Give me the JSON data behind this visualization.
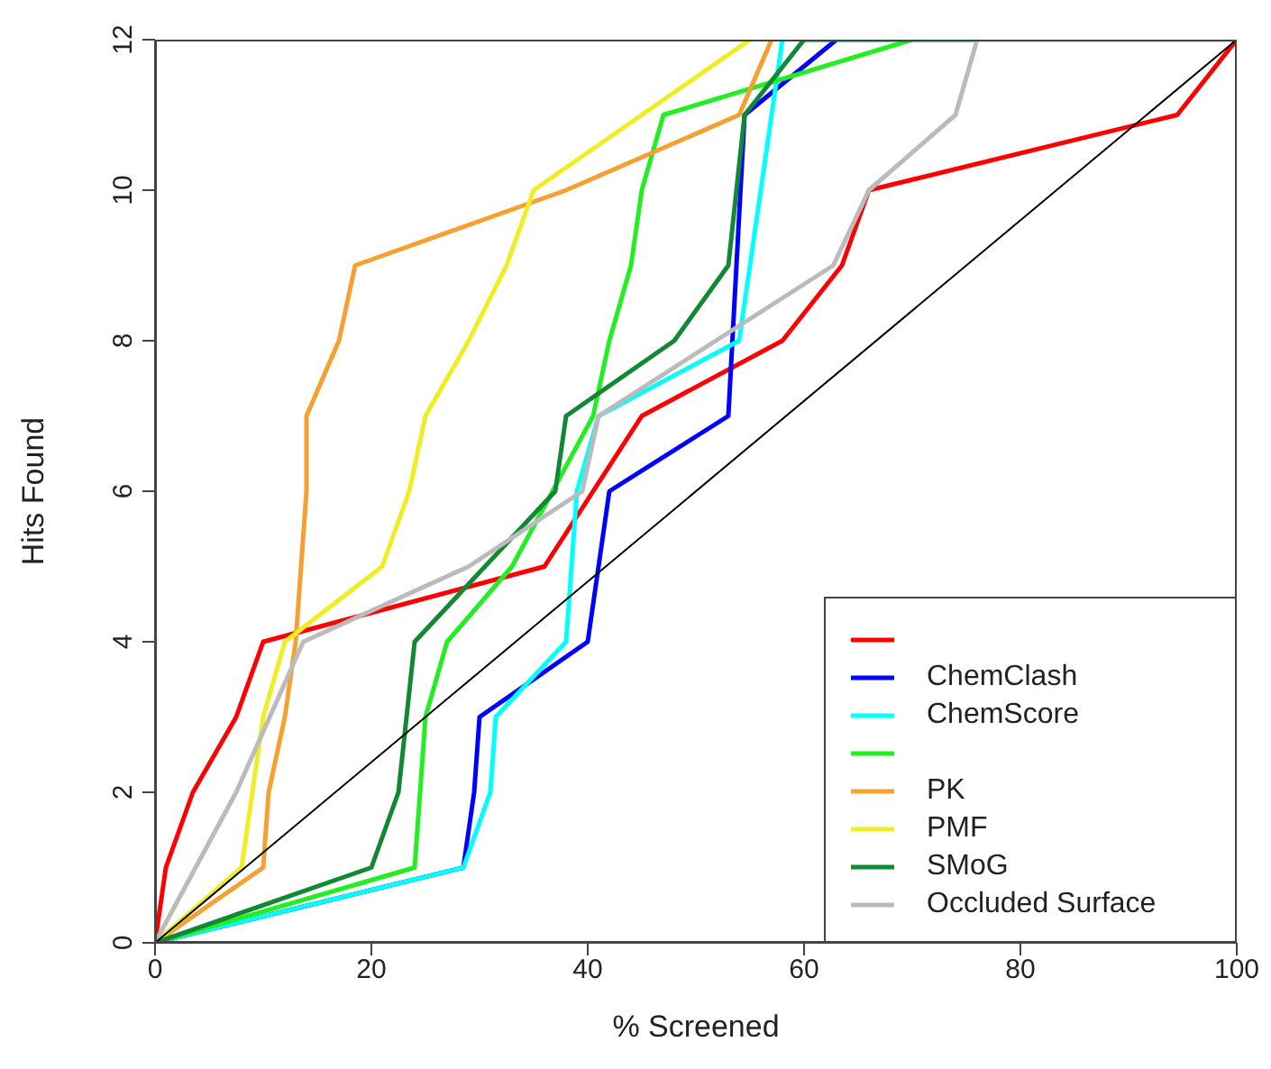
{
  "chart_data": {
    "type": "line",
    "xlabel": "% Screened",
    "ylabel": "Hits Found",
    "xlim": [
      0,
      100
    ],
    "xticks": [
      0,
      20,
      40,
      60,
      80,
      100
    ],
    "ylim": [
      0,
      12
    ],
    "yticks": [
      0,
      2,
      4,
      6,
      8,
      10,
      12
    ],
    "legend": "bottom right",
    "marker": "none",
    "line_style": "solid",
    "series": [
      {
        "color": "#ff0000",
        "x": [
          0,
          1,
          3.5,
          7.5,
          10,
          36,
          45,
          58,
          63.5,
          66,
          94.5,
          100
        ],
        "values": [
          0,
          1,
          2,
          3,
          4,
          5,
          7,
          8,
          9,
          10,
          11,
          12
        ]
      },
      {
        "name": "ChemClash",
        "color": "#0000ff",
        "x": [
          0,
          28.5,
          29.5,
          30,
          40,
          41,
          42,
          53,
          54.5,
          63
        ],
        "values": [
          0,
          1,
          2,
          3,
          4,
          5,
          6,
          7,
          11,
          12
        ]
      },
      {
        "name": "ChemScore",
        "color": "#00ffff",
        "x": [
          0,
          28.5,
          31,
          31.5,
          38,
          39,
          41,
          54,
          56,
          57,
          58
        ],
        "values": [
          0,
          1,
          2,
          3,
          4,
          6,
          7,
          8,
          10,
          11,
          12
        ]
      },
      {
        "color": "#22ee22",
        "x": [
          0,
          24,
          24.5,
          25,
          27,
          33,
          40.5,
          42,
          44,
          45,
          47,
          70
        ],
        "values": [
          0,
          1,
          2,
          3,
          4,
          5,
          7,
          8,
          9,
          10,
          11,
          12
        ]
      },
      {
        "name": "PK",
        "color": "#f5a030",
        "x": [
          0,
          10,
          10.5,
          12,
          13,
          13.5,
          14,
          14,
          17,
          18.5,
          38,
          54,
          57
        ],
        "values": [
          0,
          1,
          2,
          3,
          4,
          5,
          6,
          7,
          8,
          9,
          10,
          11,
          12
        ]
      },
      {
        "name": "PMF",
        "color": "#eeee22",
        "x": [
          0,
          8,
          10,
          12,
          21,
          23.5,
          25,
          29,
          32.5,
          35,
          55
        ],
        "values": [
          0,
          1,
          3,
          4,
          5,
          6,
          7,
          8,
          9,
          10,
          12
        ]
      },
      {
        "name": "SMoG",
        "color": "#118833",
        "x": [
          0,
          20,
          22.5,
          24,
          37,
          38,
          48,
          53,
          54.5,
          60,
          76
        ],
        "values": [
          0,
          1,
          2,
          4,
          6,
          7,
          8,
          9,
          11,
          12,
          12
        ]
      },
      {
        "name": "Occluded Surface",
        "color": "#bbbbbb",
        "x": [
          0,
          7.5,
          13.7,
          29,
          39.5,
          41,
          62.7,
          66,
          74,
          76,
          100
        ],
        "values": [
          0,
          2,
          4,
          5,
          6,
          7,
          9,
          10,
          11,
          12,
          12
        ]
      },
      {
        "type": "line",
        "color": "#000000",
        "x": [
          0,
          100
        ],
        "values": [
          0,
          12
        ]
      }
    ]
  }
}
